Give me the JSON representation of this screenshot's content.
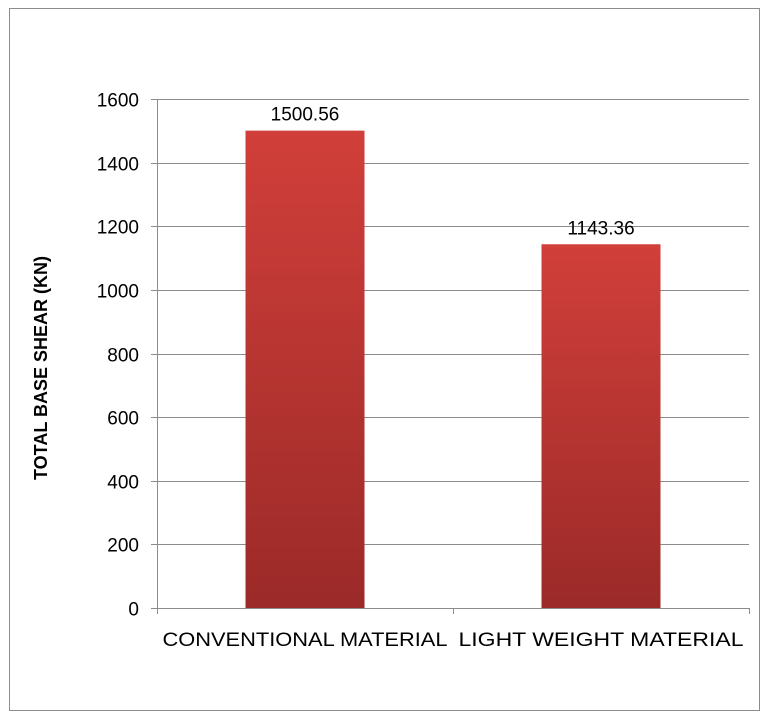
{
  "chart_data": {
    "type": "bar",
    "title": "",
    "xlabel": "",
    "ylabel": "TOTAL BASE SHEAR (KN)",
    "categories": [
      "CONVENTIONAL MATERIAL",
      "LIGHT WEIGHT MATERIAL"
    ],
    "values": [
      1500.56,
      1143.36
    ],
    "data_labels": [
      "1500.56",
      "1143.36"
    ],
    "ylim": [
      0,
      1600
    ],
    "y_ticks": [
      0,
      200,
      400,
      600,
      800,
      1000,
      1200,
      1400,
      1600
    ],
    "grid": true,
    "legend": "none",
    "bar_color_top": "#d13f3a",
    "bar_color_bottom": "#9b2a28"
  }
}
